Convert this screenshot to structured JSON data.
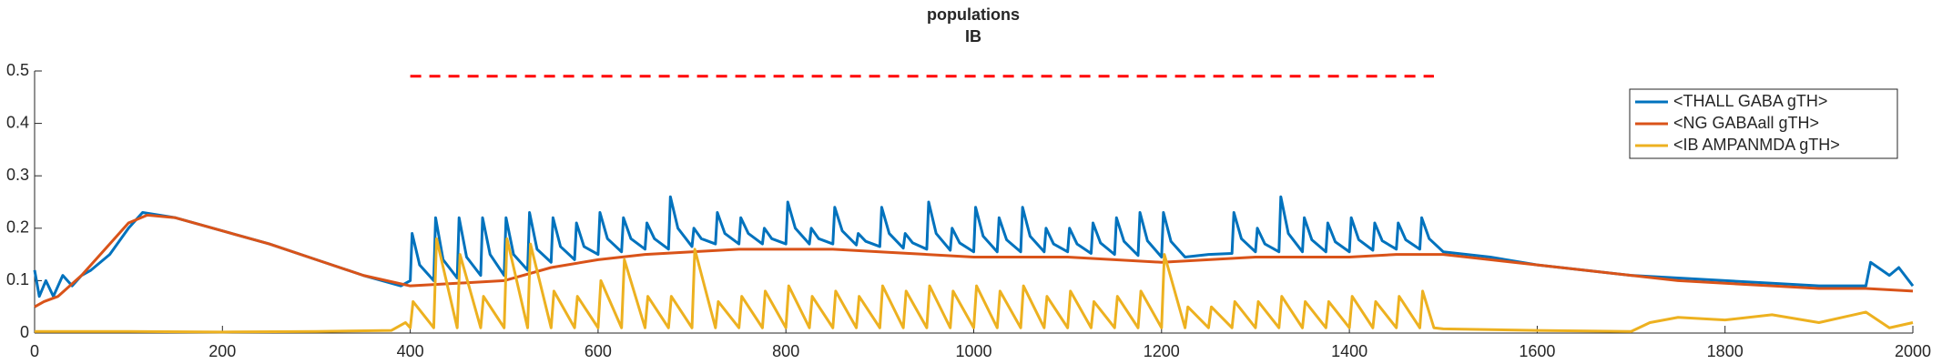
{
  "chart_data": {
    "type": "line",
    "title": "populations",
    "subtitle": "IB",
    "xlim": [
      0,
      2000
    ],
    "xticks": [
      0,
      200,
      400,
      600,
      800,
      1000,
      1200,
      1400,
      1600,
      1800,
      2000
    ],
    "ylim": [
      0,
      0.5
    ],
    "yticks": [
      0,
      0.1,
      0.2,
      0.3,
      0.4,
      0.5
    ],
    "legend": "northeast",
    "grid": false,
    "hlines": [
      {
        "value": 0.49,
        "xmin": 400,
        "xmax": 1490,
        "color": "#ff0000",
        "style": "dashed"
      }
    ],
    "series": [
      {
        "name": "<THALL GABA gTH>",
        "color": "#0072bd",
        "x": [
          0,
          5,
          12,
          20,
          30,
          40,
          50,
          60,
          80,
          100,
          115,
          150,
          200,
          250,
          300,
          350,
          390,
          400,
          402,
          410,
          425,
          427,
          435,
          450,
          452,
          460,
          475,
          477,
          485,
          500,
          502,
          510,
          525,
          527,
          535,
          550,
          552,
          560,
          575,
          577,
          585,
          600,
          602,
          610,
          625,
          627,
          635,
          650,
          652,
          660,
          675,
          677,
          685,
          700,
          702,
          710,
          725,
          727,
          735,
          750,
          752,
          760,
          775,
          777,
          785,
          800,
          802,
          810,
          825,
          827,
          835,
          850,
          852,
          860,
          875,
          877,
          885,
          900,
          902,
          910,
          925,
          927,
          935,
          950,
          952,
          960,
          975,
          977,
          985,
          1000,
          1002,
          1010,
          1025,
          1027,
          1035,
          1050,
          1052,
          1060,
          1075,
          1077,
          1085,
          1100,
          1102,
          1110,
          1125,
          1127,
          1135,
          1150,
          1152,
          1160,
          1175,
          1177,
          1185,
          1200,
          1202,
          1210,
          1225,
          1250,
          1275,
          1277,
          1285,
          1300,
          1302,
          1310,
          1325,
          1327,
          1335,
          1350,
          1352,
          1360,
          1375,
          1377,
          1385,
          1400,
          1402,
          1410,
          1425,
          1427,
          1435,
          1450,
          1452,
          1460,
          1475,
          1477,
          1485,
          1500,
          1550,
          1600,
          1650,
          1700,
          1750,
          1800,
          1850,
          1900,
          1950,
          1955,
          1975,
          1985,
          2000
        ],
        "values": [
          0.12,
          0.07,
          0.1,
          0.07,
          0.11,
          0.09,
          0.11,
          0.12,
          0.15,
          0.2,
          0.23,
          0.22,
          0.195,
          0.17,
          0.14,
          0.11,
          0.09,
          0.1,
          0.19,
          0.13,
          0.1,
          0.22,
          0.14,
          0.105,
          0.22,
          0.145,
          0.11,
          0.22,
          0.15,
          0.11,
          0.22,
          0.15,
          0.12,
          0.23,
          0.16,
          0.135,
          0.22,
          0.165,
          0.14,
          0.21,
          0.165,
          0.15,
          0.23,
          0.18,
          0.155,
          0.22,
          0.18,
          0.16,
          0.21,
          0.18,
          0.16,
          0.26,
          0.2,
          0.165,
          0.2,
          0.18,
          0.17,
          0.23,
          0.19,
          0.17,
          0.22,
          0.19,
          0.17,
          0.2,
          0.18,
          0.17,
          0.25,
          0.2,
          0.17,
          0.2,
          0.18,
          0.17,
          0.24,
          0.195,
          0.168,
          0.19,
          0.175,
          0.165,
          0.24,
          0.19,
          0.162,
          0.19,
          0.172,
          0.16,
          0.25,
          0.19,
          0.158,
          0.2,
          0.172,
          0.155,
          0.24,
          0.185,
          0.155,
          0.22,
          0.178,
          0.155,
          0.24,
          0.185,
          0.155,
          0.2,
          0.17,
          0.155,
          0.2,
          0.17,
          0.152,
          0.21,
          0.172,
          0.15,
          0.22,
          0.175,
          0.148,
          0.23,
          0.176,
          0.145,
          0.23,
          0.175,
          0.145,
          0.15,
          0.152,
          0.23,
          0.18,
          0.155,
          0.2,
          0.17,
          0.155,
          0.26,
          0.19,
          0.155,
          0.22,
          0.178,
          0.155,
          0.21,
          0.174,
          0.155,
          0.22,
          0.178,
          0.158,
          0.21,
          0.176,
          0.16,
          0.21,
          0.178,
          0.16,
          0.22,
          0.18,
          0.155,
          0.145,
          0.13,
          0.12,
          0.11,
          0.105,
          0.1,
          0.095,
          0.09,
          0.09,
          0.135,
          0.11,
          0.125,
          0.09
        ]
      },
      {
        "name": "<NG GABAall gTH>",
        "color": "#d95319",
        "x": [
          0,
          10,
          25,
          50,
          75,
          100,
          120,
          150,
          200,
          250,
          300,
          350,
          400,
          450,
          500,
          550,
          600,
          650,
          700,
          750,
          800,
          850,
          900,
          950,
          1000,
          1050,
          1100,
          1150,
          1200,
          1250,
          1300,
          1350,
          1400,
          1450,
          1500,
          1550,
          1600,
          1650,
          1700,
          1750,
          1800,
          1850,
          1900,
          1950,
          2000
        ],
        "values": [
          0.05,
          0.06,
          0.07,
          0.11,
          0.16,
          0.21,
          0.225,
          0.22,
          0.195,
          0.17,
          0.14,
          0.11,
          0.09,
          0.095,
          0.1,
          0.125,
          0.14,
          0.15,
          0.155,
          0.16,
          0.16,
          0.16,
          0.155,
          0.15,
          0.145,
          0.145,
          0.145,
          0.14,
          0.135,
          0.14,
          0.145,
          0.145,
          0.145,
          0.15,
          0.15,
          0.14,
          0.13,
          0.12,
          0.11,
          0.1,
          0.095,
          0.09,
          0.085,
          0.085,
          0.08
        ]
      },
      {
        "name": "<IB AMPANMDA gTH>",
        "color": "#edb120",
        "x": [
          0,
          100,
          200,
          300,
          380,
          395,
          400,
          403,
          425,
          428,
          450,
          453,
          475,
          478,
          500,
          503,
          525,
          528,
          550,
          553,
          575,
          578,
          600,
          603,
          625,
          628,
          650,
          653,
          675,
          678,
          700,
          703,
          725,
          728,
          750,
          753,
          775,
          778,
          800,
          803,
          825,
          828,
          850,
          853,
          875,
          878,
          900,
          903,
          925,
          928,
          950,
          953,
          975,
          978,
          1000,
          1003,
          1025,
          1028,
          1050,
          1053,
          1075,
          1078,
          1100,
          1103,
          1125,
          1128,
          1150,
          1153,
          1175,
          1178,
          1200,
          1203,
          1225,
          1228,
          1250,
          1253,
          1275,
          1278,
          1300,
          1303,
          1325,
          1328,
          1350,
          1353,
          1375,
          1378,
          1400,
          1403,
          1425,
          1428,
          1450,
          1453,
          1475,
          1478,
          1490,
          1500,
          1600,
          1700,
          1720,
          1750,
          1800,
          1850,
          1900,
          1950,
          1975,
          2000
        ],
        "values": [
          0.003,
          0.003,
          0.002,
          0.003,
          0.005,
          0.02,
          0.01,
          0.06,
          0.01,
          0.18,
          0.01,
          0.15,
          0.01,
          0.07,
          0.01,
          0.18,
          0.01,
          0.17,
          0.01,
          0.08,
          0.01,
          0.07,
          0.01,
          0.1,
          0.01,
          0.14,
          0.01,
          0.07,
          0.01,
          0.07,
          0.01,
          0.16,
          0.01,
          0.06,
          0.01,
          0.07,
          0.01,
          0.08,
          0.01,
          0.09,
          0.01,
          0.07,
          0.01,
          0.08,
          0.01,
          0.07,
          0.01,
          0.09,
          0.01,
          0.08,
          0.01,
          0.09,
          0.01,
          0.08,
          0.01,
          0.09,
          0.01,
          0.08,
          0.01,
          0.09,
          0.01,
          0.07,
          0.01,
          0.08,
          0.01,
          0.06,
          0.01,
          0.07,
          0.01,
          0.08,
          0.01,
          0.15,
          0.01,
          0.05,
          0.01,
          0.05,
          0.01,
          0.06,
          0.01,
          0.06,
          0.01,
          0.07,
          0.01,
          0.06,
          0.01,
          0.06,
          0.01,
          0.07,
          0.01,
          0.06,
          0.01,
          0.07,
          0.01,
          0.08,
          0.01,
          0.008,
          0.005,
          0.003,
          0.02,
          0.03,
          0.025,
          0.035,
          0.02,
          0.04,
          0.01,
          0.02
        ]
      }
    ]
  }
}
